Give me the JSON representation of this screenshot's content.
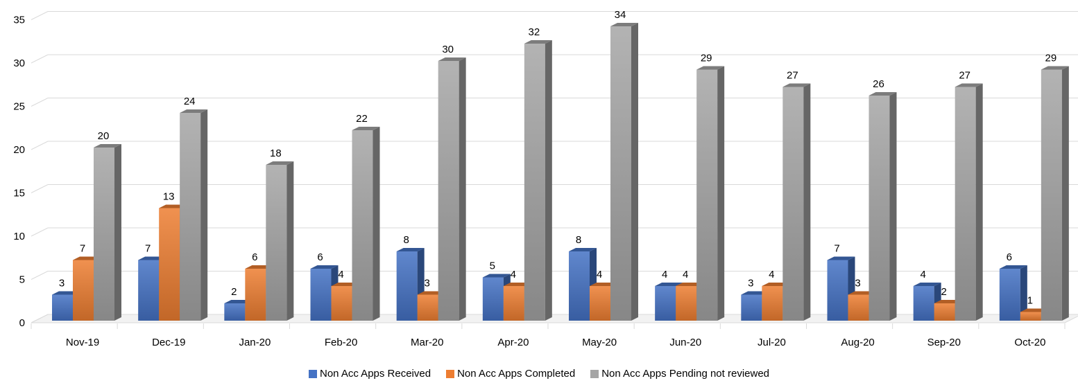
{
  "chart_data": {
    "type": "bar",
    "categories": [
      "Nov-19",
      "Dec-19",
      "Jan-20",
      "Feb-20",
      "Mar-20",
      "Apr-20",
      "May-20",
      "Jun-20",
      "Jul-20",
      "Aug-20",
      "Sep-20",
      "Oct-20"
    ],
    "series": [
      {
        "name": "Non Acc Apps Received",
        "values": [
          3,
          7,
          2,
          6,
          8,
          5,
          8,
          4,
          3,
          7,
          4,
          6
        ],
        "color": "#4472c4"
      },
      {
        "name": "Non Acc Apps Completed",
        "values": [
          7,
          13,
          6,
          4,
          3,
          4,
          4,
          4,
          4,
          3,
          2,
          1
        ],
        "color": "#ed7d31"
      },
      {
        "name": "Non Acc Apps Pending not reviewed",
        "values": [
          20,
          24,
          18,
          22,
          30,
          32,
          34,
          29,
          27,
          26,
          27,
          29
        ],
        "color": "#a5a5a5"
      }
    ],
    "yticks": [
      0,
      5,
      10,
      15,
      20,
      25,
      30,
      35
    ],
    "ylim": [
      0,
      35
    ],
    "grid": true,
    "legend": "bottom",
    "style": "3d-clustered-column"
  }
}
